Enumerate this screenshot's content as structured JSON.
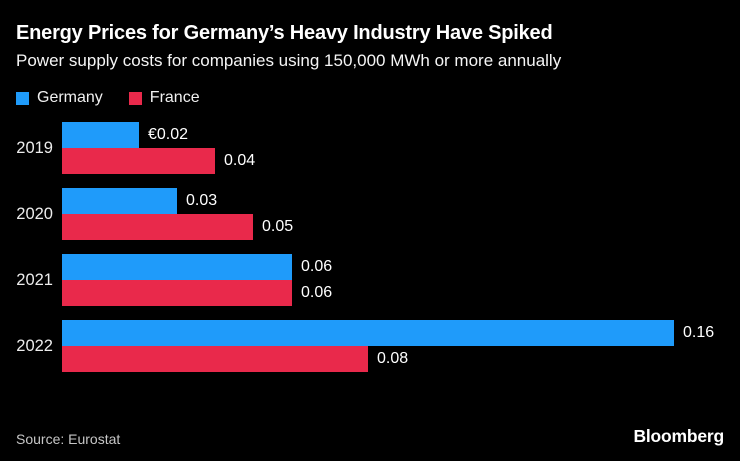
{
  "colors": {
    "background": "#000000",
    "germany_blue": "#1F9BFA",
    "france_red": "#E9294B",
    "title_text": "#FFFFFF",
    "label_text": "#ECECEC",
    "source_text": "#C6C6C6"
  },
  "chart_data": {
    "type": "bar",
    "orientation": "horizontal",
    "title": "Energy Prices for Germany’s Heavy Industry Have Spiked",
    "subtitle": "Power supply costs for companies using 150,000 MWh or more annually",
    "categories": [
      "2019",
      "2020",
      "2021",
      "2022"
    ],
    "series": [
      {
        "name": "Germany",
        "color": "#1F9BFA",
        "values": [
          0.02,
          0.03,
          0.06,
          0.16
        ],
        "labels": [
          "€0.02",
          "0.03",
          "0.06",
          "0.16"
        ]
      },
      {
        "name": "France",
        "color": "#E9294B",
        "values": [
          0.04,
          0.05,
          0.06,
          0.08
        ],
        "labels": [
          "0.04",
          "0.05",
          "0.06",
          "0.08"
        ]
      }
    ],
    "xlim": [
      0,
      0.16
    ],
    "grid": false,
    "value_labels": true,
    "legend_position": "top-left"
  },
  "footer": {
    "source": "Source: Eurostat",
    "logo": "Bloomberg"
  }
}
